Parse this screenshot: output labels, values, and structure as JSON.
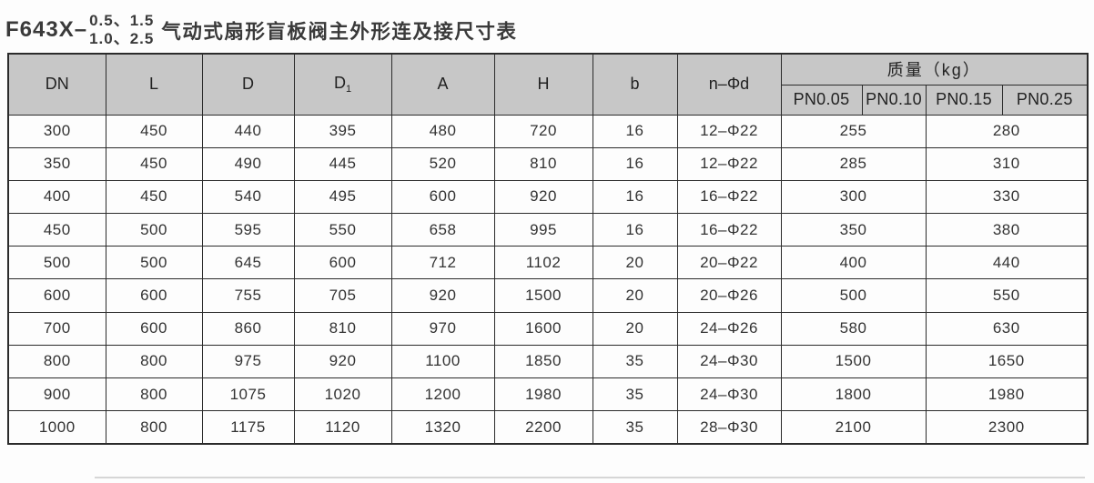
{
  "title": {
    "model": "F643X–",
    "pn_top": "0.5、1.5",
    "pn_bottom": "1.0、2.5",
    "text": "气动式扇形盲板阀主外形连及接尺寸表"
  },
  "table": {
    "columns": {
      "dn": "DN",
      "l": "L",
      "d": "D",
      "d1_base": "D",
      "d1_sub": "1",
      "a": "A",
      "h": "H",
      "b": "b",
      "n_phi_d": "n–Φd"
    },
    "mass_group": {
      "label": "质量（kg）",
      "pn_columns": [
        "PN0.05",
        "PN0.10",
        "PN0.15",
        "PN0.25"
      ]
    },
    "rows": [
      {
        "dn": "300",
        "l": "450",
        "d": "440",
        "d1": "395",
        "a": "480",
        "h": "720",
        "b": "16",
        "n_phi_d": "12–Φ22",
        "mass_low": "255",
        "mass_high": "280"
      },
      {
        "dn": "350",
        "l": "450",
        "d": "490",
        "d1": "445",
        "a": "520",
        "h": "810",
        "b": "16",
        "n_phi_d": "12–Φ22",
        "mass_low": "285",
        "mass_high": "310"
      },
      {
        "dn": "400",
        "l": "450",
        "d": "540",
        "d1": "495",
        "a": "600",
        "h": "920",
        "b": "16",
        "n_phi_d": "16–Φ22",
        "mass_low": "300",
        "mass_high": "330"
      },
      {
        "dn": "450",
        "l": "500",
        "d": "595",
        "d1": "550",
        "a": "658",
        "h": "995",
        "b": "16",
        "n_phi_d": "16–Φ22",
        "mass_low": "350",
        "mass_high": "380"
      },
      {
        "dn": "500",
        "l": "500",
        "d": "645",
        "d1": "600",
        "a": "712",
        "h": "1102",
        "b": "20",
        "n_phi_d": "20–Φ22",
        "mass_low": "400",
        "mass_high": "440"
      },
      {
        "dn": "600",
        "l": "600",
        "d": "755",
        "d1": "705",
        "a": "920",
        "h": "1500",
        "b": "20",
        "n_phi_d": "20–Φ26",
        "mass_low": "500",
        "mass_high": "550"
      },
      {
        "dn": "700",
        "l": "600",
        "d": "860",
        "d1": "810",
        "a": "970",
        "h": "1600",
        "b": "20",
        "n_phi_d": "24–Φ26",
        "mass_low": "580",
        "mass_high": "630"
      },
      {
        "dn": "800",
        "l": "800",
        "d": "975",
        "d1": "920",
        "a": "1100",
        "h": "1850",
        "b": "35",
        "n_phi_d": "24–Φ30",
        "mass_low": "1500",
        "mass_high": "1650"
      },
      {
        "dn": "900",
        "l": "800",
        "d": "1075",
        "d1": "1020",
        "a": "1200",
        "h": "1980",
        "b": "35",
        "n_phi_d": "24–Φ30",
        "mass_low": "1800",
        "mass_high": "1980"
      },
      {
        "dn": "1000",
        "l": "800",
        "d": "1175",
        "d1": "1120",
        "a": "1320",
        "h": "2200",
        "b": "35",
        "n_phi_d": "28–Φ30",
        "mass_low": "2100",
        "mass_high": "2300"
      }
    ]
  },
  "colors": {
    "header_bg": "#c7c7c7",
    "border": "#2b2b2b",
    "body_bg": "#fdfdfd",
    "text": "#333333"
  }
}
